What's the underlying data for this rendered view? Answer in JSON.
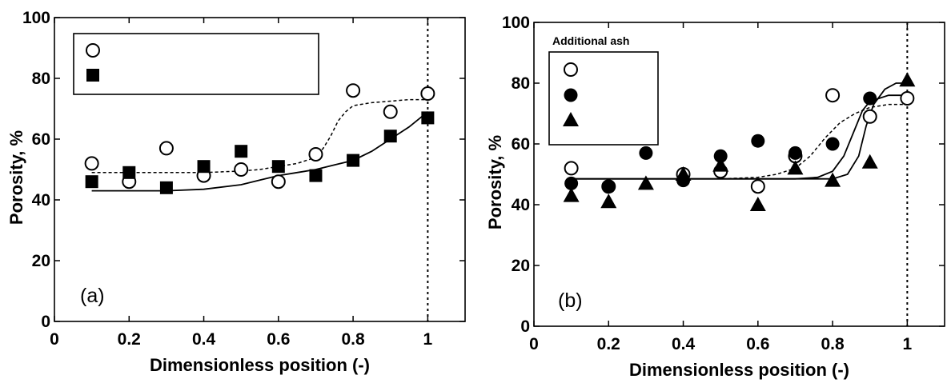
{
  "chart_data": [
    {
      "type": "scatter",
      "panel_label": "(a)",
      "xlabel": "Dimensionless position (-)",
      "ylabel": "Porosity, %",
      "xlim": [
        0,
        1.1
      ],
      "ylim": [
        0,
        100
      ],
      "xticks": [
        0,
        0.2,
        0.4,
        0.6,
        0.8,
        1
      ],
      "xtick_labels": [
        "0",
        "0.2",
        "0.4",
        "0.6",
        "0.8",
        "1"
      ],
      "yticks": [
        0,
        20,
        40,
        60,
        80,
        100
      ],
      "ytick_labels": [
        "0",
        "20",
        "40",
        "60",
        "80",
        "100"
      ],
      "grid": false,
      "legend": {
        "position": "top-left",
        "title": "",
        "entries": [
          "",
          ""
        ]
      },
      "reference_line": {
        "x": 1.0,
        "style": "dotted"
      },
      "series": [
        {
          "marker": "open-circle",
          "x": [
            0.1,
            0.2,
            0.3,
            0.4,
            0.5,
            0.6,
            0.7,
            0.8,
            0.9,
            1.0
          ],
          "y": [
            52,
            46,
            57,
            48,
            50,
            46,
            55,
            76,
            69,
            75
          ]
        },
        {
          "marker": "filled-square",
          "x": [
            0.1,
            0.2,
            0.3,
            0.4,
            0.5,
            0.6,
            0.7,
            0.8,
            0.9,
            1.0
          ],
          "y": [
            46,
            49,
            44,
            51,
            56,
            51,
            48,
            53,
            61,
            67
          ]
        }
      ],
      "fit_curves": [
        {
          "style": "dashed",
          "x": [
            0.1,
            0.2,
            0.3,
            0.4,
            0.5,
            0.55,
            0.6,
            0.65,
            0.7,
            0.72,
            0.74,
            0.76,
            0.78,
            0.8,
            0.85,
            0.9,
            0.95,
            1.0
          ],
          "y": [
            49,
            49,
            49,
            49,
            49.5,
            50,
            51,
            52,
            54,
            57,
            61,
            66,
            69,
            71,
            72,
            72.5,
            73,
            73
          ]
        },
        {
          "style": "solid",
          "x": [
            0.1,
            0.2,
            0.3,
            0.4,
            0.5,
            0.55,
            0.6,
            0.65,
            0.7,
            0.75,
            0.8,
            0.85,
            0.9,
            0.95,
            1.0
          ],
          "y": [
            43,
            43,
            43,
            43.5,
            45,
            46.5,
            48,
            49,
            50,
            51.5,
            53,
            56,
            60,
            64,
            69
          ]
        }
      ]
    },
    {
      "type": "scatter",
      "panel_label": "(b)",
      "xlabel": "Dimensionless position (-)",
      "ylabel": "Porosity, %",
      "xlim": [
        0,
        1.1
      ],
      "ylim": [
        0,
        100
      ],
      "xticks": [
        0,
        0.2,
        0.4,
        0.6,
        0.8,
        1
      ],
      "xtick_labels": [
        "0",
        "0.2",
        "0.4",
        "0.6",
        "0.8",
        "1"
      ],
      "yticks": [
        0,
        20,
        40,
        60,
        80,
        100
      ],
      "ytick_labels": [
        "0",
        "20",
        "40",
        "60",
        "80",
        "100"
      ],
      "grid": false,
      "legend": {
        "position": "top-left",
        "title": "Additional ash",
        "entries": [
          "",
          "",
          ""
        ]
      },
      "reference_line": {
        "x": 1.0,
        "style": "dotted"
      },
      "series": [
        {
          "marker": "open-circle",
          "x": [
            0.1,
            0.2,
            0.4,
            0.5,
            0.6,
            0.7,
            0.8,
            0.9,
            1.0
          ],
          "y": [
            52,
            46,
            50,
            51,
            46,
            56,
            76,
            69,
            75
          ]
        },
        {
          "marker": "filled-circle",
          "x": [
            0.1,
            0.2,
            0.3,
            0.4,
            0.5,
            0.6,
            0.7,
            0.8,
            0.9
          ],
          "y": [
            47,
            46,
            57,
            48,
            56,
            61,
            57,
            60,
            75
          ]
        },
        {
          "marker": "filled-triangle",
          "x": [
            0.1,
            0.2,
            0.3,
            0.4,
            0.5,
            0.6,
            0.7,
            0.8,
            0.9,
            1.0
          ],
          "y": [
            43,
            41,
            47,
            50,
            53,
            40,
            52,
            48,
            54,
            81
          ]
        }
      ],
      "fit_curves": [
        {
          "style": "dashed",
          "x": [
            0.1,
            0.2,
            0.3,
            0.4,
            0.5,
            0.6,
            0.65,
            0.7,
            0.74,
            0.78,
            0.82,
            0.86,
            0.9,
            0.95,
            1.0
          ],
          "y": [
            48.5,
            48.5,
            48.5,
            48.5,
            48.5,
            49,
            50,
            52,
            56,
            62,
            67,
            70,
            72,
            73,
            73
          ]
        },
        {
          "style": "solid",
          "x": [
            0.1,
            0.2,
            0.3,
            0.4,
            0.5,
            0.6,
            0.7,
            0.76,
            0.8,
            0.83,
            0.86,
            0.88,
            0.9,
            0.95,
            1.0
          ],
          "y": [
            48.5,
            48.5,
            48.5,
            48.5,
            48.5,
            48.5,
            48.5,
            49,
            51,
            56,
            65,
            71,
            74,
            76,
            76
          ]
        },
        {
          "style": "solid",
          "x": [
            0.1,
            0.2,
            0.3,
            0.4,
            0.5,
            0.6,
            0.7,
            0.8,
            0.84,
            0.87,
            0.89,
            0.91,
            0.94,
            0.97,
            1.0
          ],
          "y": [
            48.5,
            48.5,
            48.5,
            48.5,
            48.5,
            48.5,
            48.5,
            48.5,
            50,
            56,
            66,
            73,
            78,
            80,
            80
          ]
        }
      ]
    }
  ]
}
